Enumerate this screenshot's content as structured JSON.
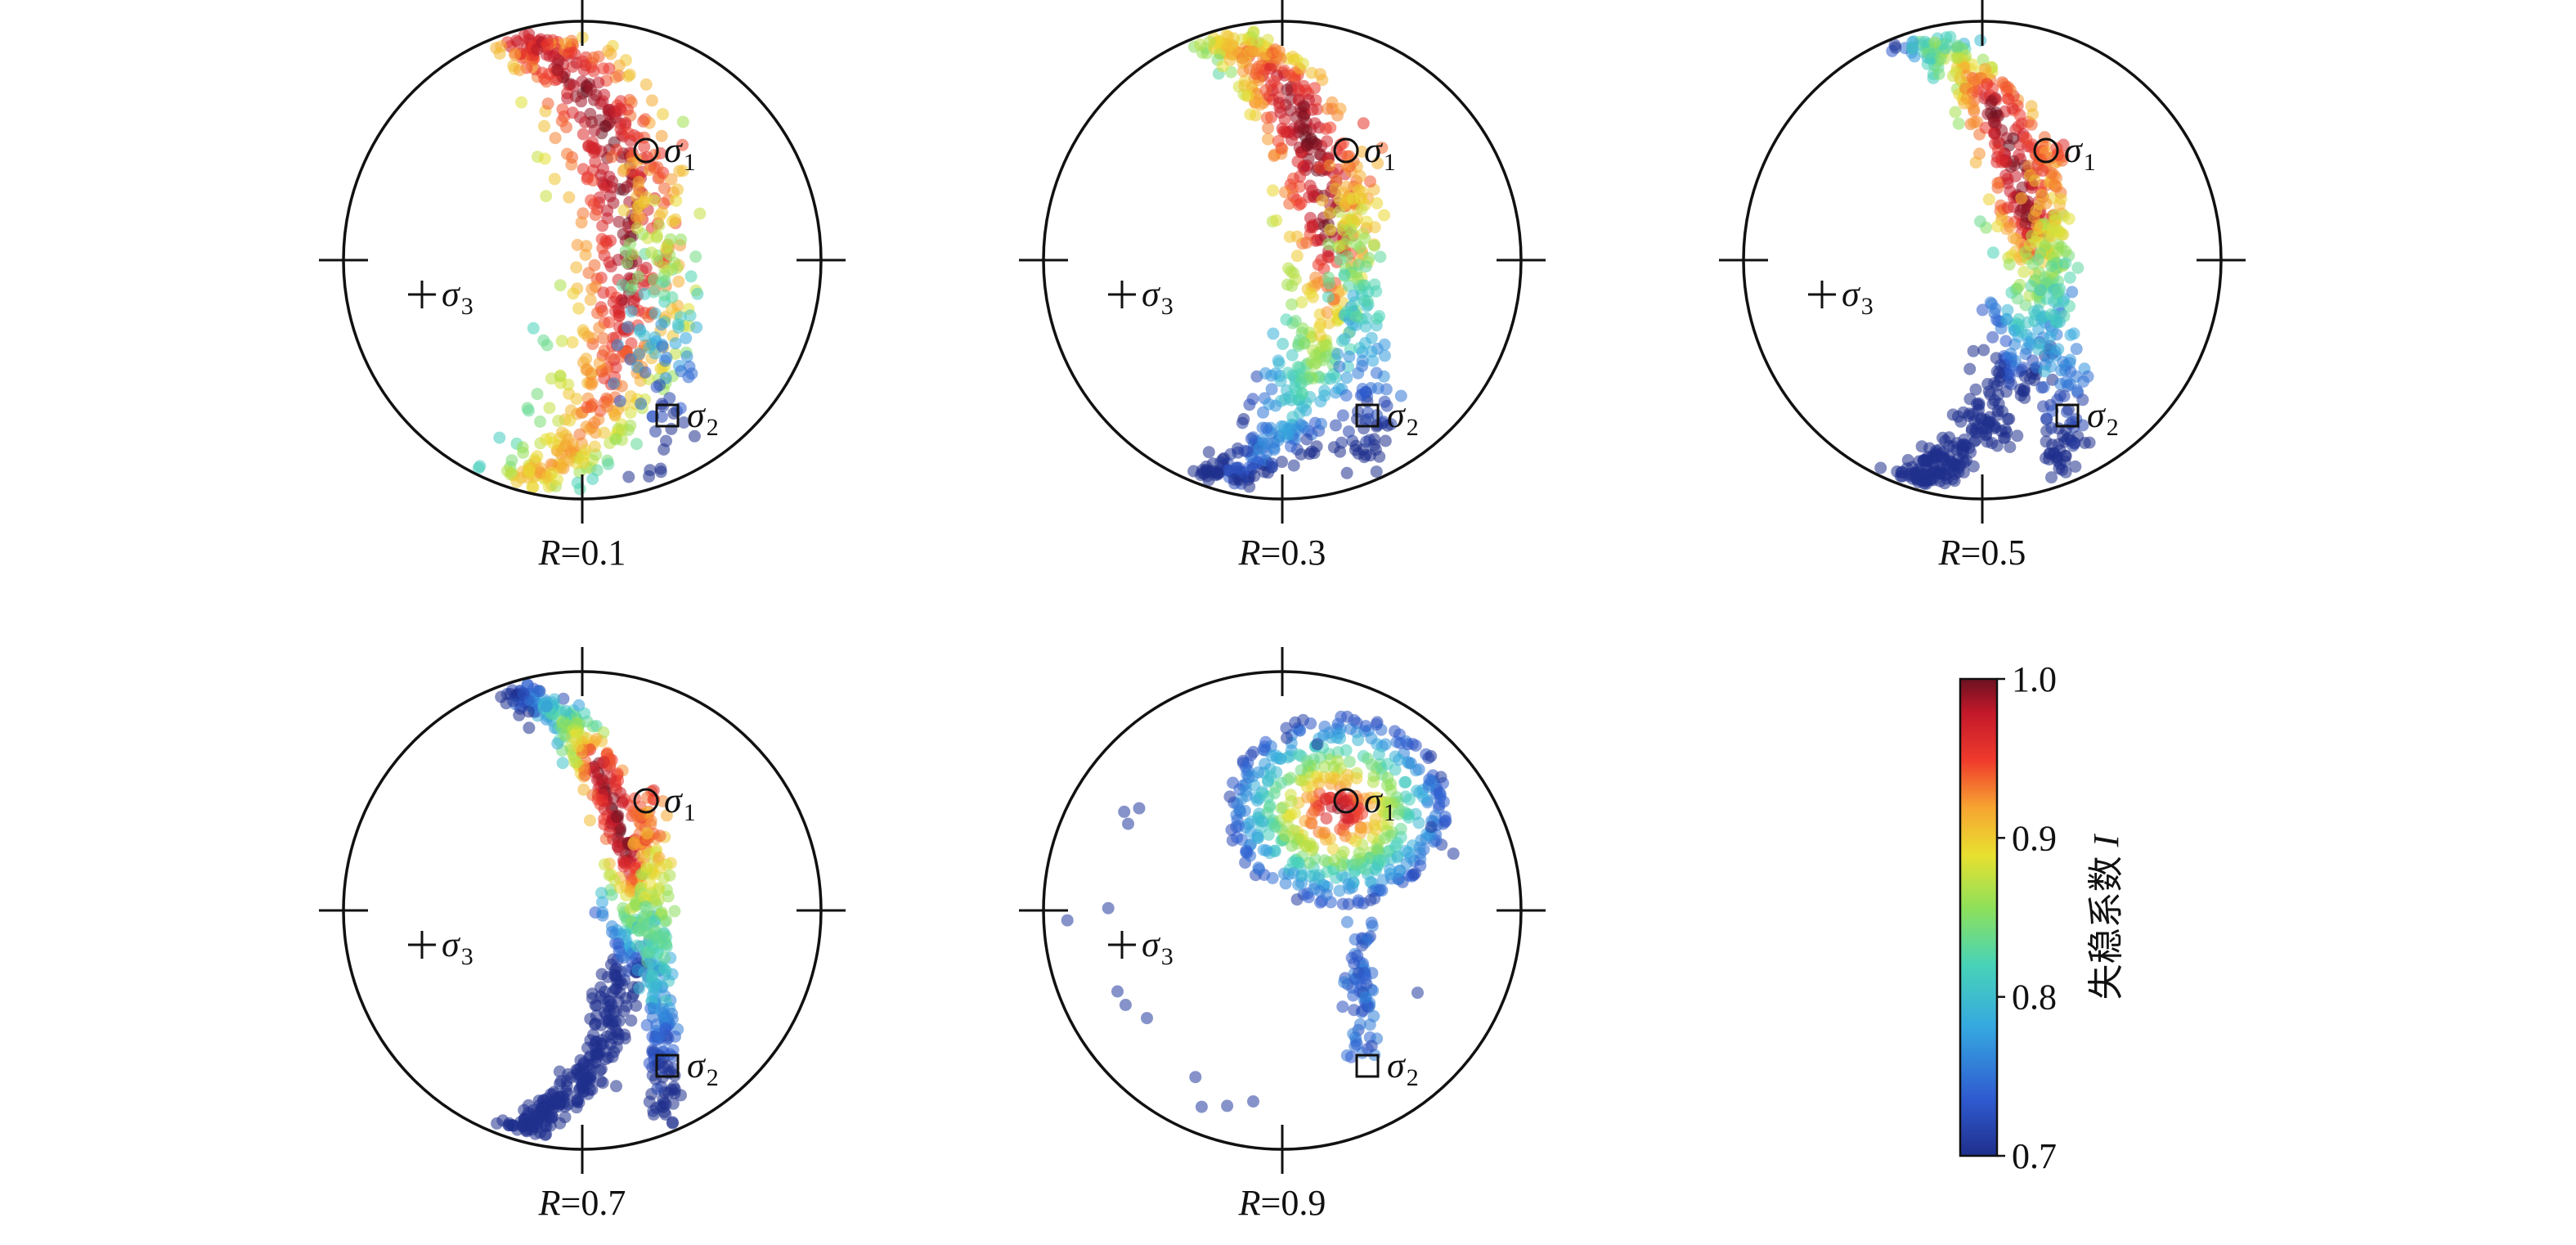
{
  "chart_data": {
    "type": "scatter",
    "description_kind": "stereonet",
    "panels": [
      {
        "R": "0.1",
        "label_prefix": "R",
        "label_value": "=0.1",
        "sigma1": {
          "trend": 40,
          "plunge": 60
        },
        "sigma2": {
          "trend": 150,
          "plunge": 25
        },
        "sigma3": {
          "trend": 265,
          "plunge": 75
        }
      },
      {
        "R": "0.3",
        "label_prefix": "R",
        "label_value": "=0.3",
        "sigma1": {
          "trend": 40,
          "plunge": 60
        },
        "sigma2": {
          "trend": 150,
          "plunge": 25
        },
        "sigma3": {
          "trend": 265,
          "plunge": 75
        }
      },
      {
        "R": "0.5",
        "label_prefix": "R",
        "label_value": "=0.5",
        "sigma1": {
          "trend": 40,
          "plunge": 60
        },
        "sigma2": {
          "trend": 150,
          "plunge": 25
        },
        "sigma3": {
          "trend": 265,
          "plunge": 75
        }
      },
      {
        "R": "0.7",
        "label_prefix": "R",
        "label_value": "=0.7",
        "sigma1": {
          "trend": 40,
          "plunge": 60
        },
        "sigma2": {
          "trend": 150,
          "plunge": 25
        },
        "sigma3": {
          "trend": 265,
          "plunge": 75
        }
      },
      {
        "R": "0.9",
        "label_prefix": "R",
        "label_value": "=0.9",
        "sigma1": {
          "trend": 40,
          "plunge": 60
        },
        "sigma2": {
          "trend": 150,
          "plunge": 25
        },
        "sigma3": {
          "trend": 265,
          "plunge": 75
        }
      }
    ],
    "stress_symbols": {
      "sigma1": {
        "marker": "circle",
        "symbol": "σ",
        "sub": "1"
      },
      "sigma2": {
        "marker": "square",
        "symbol": "σ",
        "sub": "2"
      },
      "sigma3": {
        "marker": "plus",
        "symbol": "σ",
        "sub": "3"
      }
    },
    "colorbar": {
      "label": "失稳系数 I",
      "min": 0.7,
      "max": 1.0,
      "ticks": [
        "1.0",
        "0.9",
        "0.8",
        "0.7"
      ],
      "colormap": "jet"
    },
    "marker_opacity": 0.55
  }
}
